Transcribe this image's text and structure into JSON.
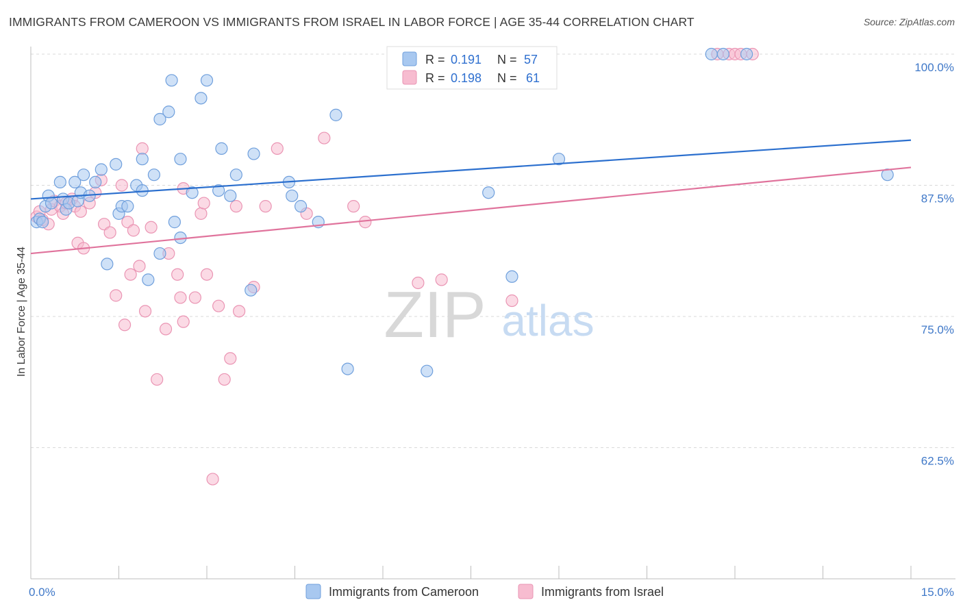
{
  "title": "IMMIGRANTS FROM CAMEROON VS IMMIGRANTS FROM ISRAEL IN LABOR FORCE | AGE 35-44 CORRELATION CHART",
  "source": "Source: ZipAtlas.com",
  "watermark": {
    "zip": "ZIP",
    "atlas": "atlas"
  },
  "colors": {
    "blue_fill": "#a8c8f0",
    "blue_stroke": "#6f9fdc",
    "blue_line": "#2b6fce",
    "pink_fill": "#f7bcd0",
    "pink_stroke": "#ea94b3",
    "pink_line": "#e0739c",
    "axis_label": "#3f78c8",
    "grid": "#d9d9d9"
  },
  "legend": {
    "rows": [
      {
        "r_label": "R =",
        "r_value": "0.191",
        "n_label": "N =",
        "n_value": "57"
      },
      {
        "r_label": "R =",
        "r_value": "0.198",
        "n_label": "N =",
        "n_value": "61"
      }
    ]
  },
  "chart_data": {
    "type": "scatter",
    "title": "IMMIGRANTS FROM CAMEROON VS IMMIGRANTS FROM ISRAEL IN LABOR FORCE | AGE 35-44 CORRELATION CHART",
    "xlabel": "",
    "ylabel": "In Labor Force | Age 35-44",
    "xlim": [
      0,
      15
    ],
    "ylim": [
      50,
      100.5
    ],
    "x_tick_labels": [
      {
        "value": 0,
        "label": "0.0%"
      },
      {
        "value": 15,
        "label": "15.0%"
      }
    ],
    "y_tick_labels": [
      {
        "value": 100,
        "label": "100.0%"
      },
      {
        "value": 87.5,
        "label": "87.5%"
      },
      {
        "value": 75,
        "label": "75.0%"
      },
      {
        "value": 62.5,
        "label": "62.5%"
      }
    ],
    "series": [
      {
        "name": "Immigrants from Cameroon",
        "color": "blue",
        "trend": {
          "x": [
            0,
            15
          ],
          "y": [
            86.2,
            91.8
          ]
        },
        "points": [
          [
            0.1,
            84.0
          ],
          [
            0.15,
            84.3
          ],
          [
            0.2,
            84.0
          ],
          [
            0.25,
            85.5
          ],
          [
            0.3,
            86.5
          ],
          [
            0.35,
            85.8
          ],
          [
            0.5,
            87.8
          ],
          [
            0.55,
            86.2
          ],
          [
            0.6,
            85.2
          ],
          [
            0.65,
            85.8
          ],
          [
            0.75,
            87.8
          ],
          [
            0.8,
            86.0
          ],
          [
            0.85,
            86.8
          ],
          [
            0.9,
            88.5
          ],
          [
            1.0,
            86.5
          ],
          [
            1.1,
            87.8
          ],
          [
            1.2,
            89.0
          ],
          [
            1.3,
            80.0
          ],
          [
            1.45,
            89.5
          ],
          [
            1.5,
            84.8
          ],
          [
            1.55,
            85.5
          ],
          [
            1.65,
            85.5
          ],
          [
            1.8,
            87.5
          ],
          [
            1.9,
            90.0
          ],
          [
            1.9,
            87.0
          ],
          [
            2.0,
            78.5
          ],
          [
            2.1,
            88.5
          ],
          [
            2.2,
            81.0
          ],
          [
            2.2,
            93.8
          ],
          [
            2.35,
            94.5
          ],
          [
            2.4,
            97.5
          ],
          [
            2.45,
            84.0
          ],
          [
            2.55,
            82.5
          ],
          [
            2.55,
            90.0
          ],
          [
            2.75,
            86.8
          ],
          [
            2.9,
            95.8
          ],
          [
            3.0,
            97.5
          ],
          [
            3.2,
            87.0
          ],
          [
            3.25,
            91.0
          ],
          [
            3.4,
            86.5
          ],
          [
            3.5,
            88.5
          ],
          [
            3.75,
            77.5
          ],
          [
            3.8,
            90.5
          ],
          [
            4.4,
            87.8
          ],
          [
            4.45,
            86.5
          ],
          [
            4.6,
            85.5
          ],
          [
            4.9,
            84.0
          ],
          [
            5.2,
            94.2
          ],
          [
            5.4,
            70.0
          ],
          [
            6.75,
            69.8
          ],
          [
            7.8,
            86.8
          ],
          [
            8.2,
            78.8
          ],
          [
            9.0,
            90.0
          ],
          [
            11.6,
            100.0
          ],
          [
            11.8,
            100.0
          ],
          [
            12.2,
            100.0
          ],
          [
            14.6,
            88.5
          ]
        ]
      },
      {
        "name": "Immigrants from Israel",
        "color": "pink",
        "trend": {
          "x": [
            0,
            15
          ],
          "y": [
            81.0,
            89.2
          ]
        },
        "points": [
          [
            0.1,
            84.5
          ],
          [
            0.15,
            85.0
          ],
          [
            0.2,
            84.2
          ],
          [
            0.3,
            83.8
          ],
          [
            0.35,
            85.2
          ],
          [
            0.4,
            86.0
          ],
          [
            0.5,
            85.5
          ],
          [
            0.55,
            84.8
          ],
          [
            0.6,
            85.8
          ],
          [
            0.7,
            86.2
          ],
          [
            0.75,
            85.5
          ],
          [
            0.8,
            82.0
          ],
          [
            0.85,
            85.0
          ],
          [
            0.9,
            81.5
          ],
          [
            1.0,
            85.8
          ],
          [
            1.1,
            86.8
          ],
          [
            1.2,
            88.0
          ],
          [
            1.25,
            83.8
          ],
          [
            1.35,
            83.0
          ],
          [
            1.45,
            77.0
          ],
          [
            1.55,
            87.5
          ],
          [
            1.6,
            74.2
          ],
          [
            1.65,
            84.0
          ],
          [
            1.7,
            79.0
          ],
          [
            1.75,
            83.2
          ],
          [
            1.85,
            79.8
          ],
          [
            1.9,
            91.0
          ],
          [
            1.95,
            75.5
          ],
          [
            2.05,
            83.5
          ],
          [
            2.15,
            69.0
          ],
          [
            2.3,
            73.8
          ],
          [
            2.35,
            81.0
          ],
          [
            2.5,
            79.0
          ],
          [
            2.55,
            76.8
          ],
          [
            2.6,
            74.5
          ],
          [
            2.6,
            87.2
          ],
          [
            2.8,
            76.8
          ],
          [
            2.9,
            84.8
          ],
          [
            2.95,
            85.8
          ],
          [
            3.0,
            79.0
          ],
          [
            3.1,
            59.5
          ],
          [
            3.2,
            76.0
          ],
          [
            3.3,
            69.0
          ],
          [
            3.4,
            71.0
          ],
          [
            3.5,
            85.5
          ],
          [
            3.55,
            75.5
          ],
          [
            3.8,
            77.8
          ],
          [
            4.0,
            85.5
          ],
          [
            4.2,
            91.0
          ],
          [
            4.7,
            84.8
          ],
          [
            5.0,
            92.0
          ],
          [
            5.5,
            85.5
          ],
          [
            5.7,
            84.0
          ],
          [
            6.6,
            78.2
          ],
          [
            7.0,
            78.5
          ],
          [
            8.2,
            76.5
          ],
          [
            11.7,
            100.0
          ],
          [
            11.9,
            100.0
          ],
          [
            12.0,
            100.0
          ],
          [
            12.1,
            100.0
          ],
          [
            12.3,
            100.0
          ]
        ]
      }
    ],
    "legend_entries": [
      "Immigrants from Cameroon",
      "Immigrants from Israel"
    ]
  }
}
